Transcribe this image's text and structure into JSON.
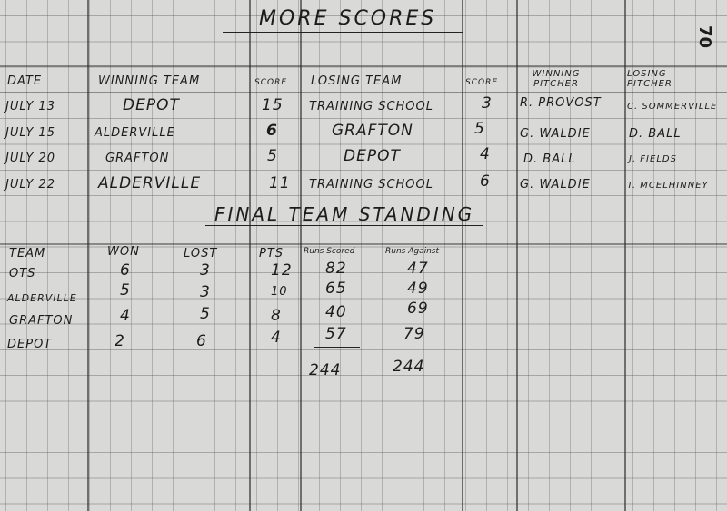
{
  "page_number": "70",
  "title": "MORE SCORES",
  "games": {
    "headers": [
      "DATE",
      "WINNING TEAM",
      "SCORE",
      "LOSING TEAM",
      "SCORE",
      "WINNING PITCHER",
      "LOSING PITCHER"
    ],
    "rows": [
      [
        "JULY 13",
        "DEPOT",
        "15",
        "TRAINING SCHOOL",
        "3",
        "R. PROVOST",
        "C. SOMMERVILLE"
      ],
      [
        "JULY 15",
        "ALDERVILLE",
        "6",
        "GRAFTON",
        "5",
        "G. WALDIE",
        "D. BALL"
      ],
      [
        "JULY 20",
        "GRAFTON",
        "5",
        "DEPOT",
        "4",
        "D. BALL",
        "J. FIELDS"
      ],
      [
        "JULY 22",
        "ALDERVILLE",
        "11",
        "TRAINING SCHOOL",
        "6",
        "G. WALDIE",
        "T. MCELHINNEY"
      ]
    ]
  },
  "standings": {
    "title": "FINAL TEAM STANDING",
    "headers": [
      "TEAM",
      "WON",
      "LOST",
      "PTS",
      "Runs Scored",
      "Runs Against"
    ],
    "rows": [
      [
        "OTS",
        "6",
        "3",
        "12",
        "82",
        "47"
      ],
      [
        "ALDERVILLE",
        "5",
        "3",
        "10",
        "65",
        "49"
      ],
      [
        "GRAFTON",
        "4",
        "5",
        "8",
        "40",
        "69"
      ],
      [
        "DEPOT",
        "2",
        "6",
        "4",
        "57",
        "79"
      ]
    ],
    "totals": {
      "runs_scored": "244",
      "runs_against": "244"
    }
  }
}
